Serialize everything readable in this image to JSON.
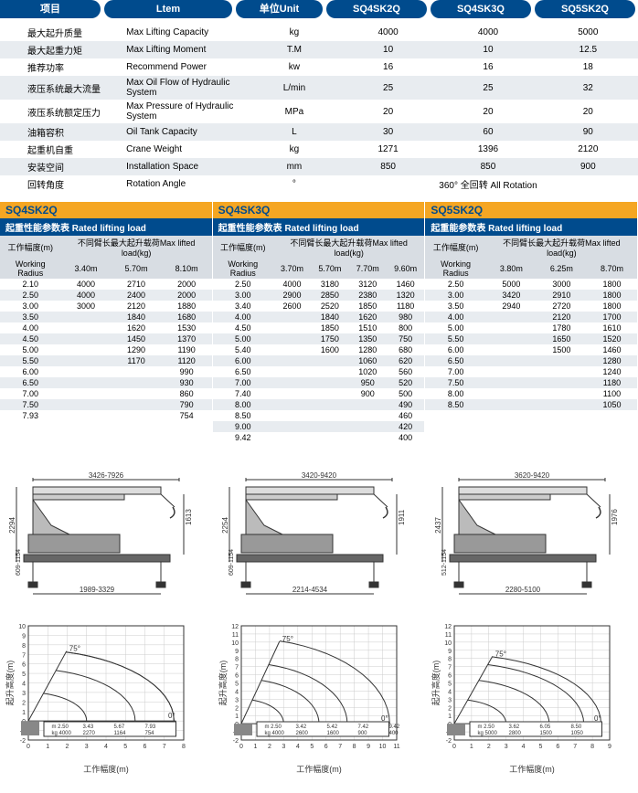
{
  "header": {
    "c1": "项目",
    "c2": "Ltem",
    "c3": "单位Unit",
    "c4": "SQ4SK2Q",
    "c5": "SQ4SK3Q",
    "c6": "SQ5SK2Q"
  },
  "specs": [
    {
      "zh": "最大起升质量",
      "en": "Max Lifting Capacity",
      "unit": "kg",
      "v": [
        "4000",
        "4000",
        "5000"
      ]
    },
    {
      "zh": "最大起重力矩",
      "en": "Max Lifting Moment",
      "unit": "T.M",
      "v": [
        "10",
        "10",
        "12.5"
      ]
    },
    {
      "zh": "推荐功率",
      "en": "Recommend Power",
      "unit": "kw",
      "v": [
        "16",
        "16",
        "18"
      ]
    },
    {
      "zh": "液压系统最大流量",
      "en": "Max Oil Flow of Hydraulic System",
      "unit": "L/min",
      "v": [
        "25",
        "25",
        "32"
      ]
    },
    {
      "zh": "液压系统额定压力",
      "en": "Max Pressure of Hydraulic System",
      "unit": "MPa",
      "v": [
        "20",
        "20",
        "20"
      ]
    },
    {
      "zh": "油箱容积",
      "en": "Oil Tank Capacity",
      "unit": "L",
      "v": [
        "30",
        "60",
        "90"
      ]
    },
    {
      "zh": "起重机自重",
      "en": "Crane Weight",
      "unit": "kg",
      "v": [
        "1271",
        "1396",
        "2120"
      ]
    },
    {
      "zh": "安装空间",
      "en": "Installation Space",
      "unit": "mm",
      "v": [
        "850",
        "850",
        "900"
      ]
    },
    {
      "zh": "回转角度",
      "en": "Rotation Angle",
      "unit": "°",
      "v": [
        "",
        "360° 全回转 All Rotation",
        ""
      ]
    }
  ],
  "models": [
    {
      "name": "SQ4SK2Q",
      "title": "起重性能参数表 Rated lifting load",
      "hdrLeft": "工作幅度(m)",
      "hdrLeftEn": "Working Radius",
      "hdrRight": "不同臂长最大起升载荷Max lifted load(kg)",
      "cols": [
        "3.40m",
        "5.70m",
        "8.10m"
      ],
      "rows": [
        [
          "2.10",
          "4000",
          "2710",
          "2000"
        ],
        [
          "2.50",
          "4000",
          "2400",
          "2000"
        ],
        [
          "3.00",
          "3000",
          "2120",
          "1880"
        ],
        [
          "3.50",
          "",
          "1840",
          "1680"
        ],
        [
          "4.00",
          "",
          "1620",
          "1530"
        ],
        [
          "4.50",
          "",
          "1450",
          "1370"
        ],
        [
          "5.00",
          "",
          "1290",
          "1190"
        ],
        [
          "5.50",
          "",
          "1170",
          "1120"
        ],
        [
          "6.00",
          "",
          "",
          "990"
        ],
        [
          "6.50",
          "",
          "",
          "930"
        ],
        [
          "7.00",
          "",
          "",
          "860"
        ],
        [
          "7.50",
          "",
          "",
          "790"
        ],
        [
          "7.93",
          "",
          "",
          "754"
        ]
      ]
    },
    {
      "name": "SQ4SK3Q",
      "title": "起重性能参数表 Rated lifting load",
      "hdrLeft": "工作幅度(m)",
      "hdrLeftEn": "Working Radius",
      "hdrRight": "不同臂长最大起升载荷Max lifted load(kg)",
      "cols": [
        "3.70m",
        "5.70m",
        "7.70m",
        "9.60m"
      ],
      "rows": [
        [
          "2.50",
          "4000",
          "3180",
          "3120",
          "1460"
        ],
        [
          "3.00",
          "2900",
          "2850",
          "2380",
          "1320"
        ],
        [
          "3.40",
          "2600",
          "2520",
          "1850",
          "1180"
        ],
        [
          "4.00",
          "",
          "1840",
          "1620",
          "980"
        ],
        [
          "4.50",
          "",
          "1850",
          "1510",
          "800"
        ],
        [
          "5.00",
          "",
          "1750",
          "1350",
          "750"
        ],
        [
          "5.40",
          "",
          "1600",
          "1280",
          "680"
        ],
        [
          "6.00",
          "",
          "",
          "1060",
          "620"
        ],
        [
          "6.50",
          "",
          "",
          "1020",
          "560"
        ],
        [
          "7.00",
          "",
          "",
          "950",
          "520"
        ],
        [
          "7.40",
          "",
          "",
          "900",
          "500"
        ],
        [
          "8.00",
          "",
          "",
          "",
          "490"
        ],
        [
          "8.50",
          "",
          "",
          "",
          "460"
        ],
        [
          "9.00",
          "",
          "",
          "",
          "420"
        ],
        [
          "9.42",
          "",
          "",
          "",
          "400"
        ]
      ]
    },
    {
      "name": "SQ5SK2Q",
      "title": "起重能参数表 Rated lifting load",
      "hdrLeft": "工作幅度(m)",
      "hdrLeftEn": "Working Radius",
      "hdrRight": "不同臂长最大起升载荷Max lifted load(kg)",
      "cols": [
        "3.80m",
        "6.25m",
        "8.70m"
      ],
      "rows": [
        [
          "2.50",
          "5000",
          "3000",
          "1800"
        ],
        [
          "3.00",
          "3420",
          "2910",
          "1800"
        ],
        [
          "3.50",
          "2940",
          "2720",
          "1800"
        ],
        [
          "4.00",
          "",
          "2120",
          "1700"
        ],
        [
          "5.00",
          "",
          "1780",
          "1610"
        ],
        [
          "5.50",
          "",
          "1650",
          "1520"
        ],
        [
          "6.00",
          "",
          "1500",
          "1460"
        ],
        [
          "6.50",
          "",
          "",
          "1280"
        ],
        [
          "7.00",
          "",
          "",
          "1240"
        ],
        [
          "7.50",
          "",
          "",
          "1180"
        ],
        [
          "8.00",
          "",
          "",
          "1100"
        ],
        [
          "8.50",
          "",
          "",
          "1050"
        ]
      ]
    }
  ],
  "diagrams": [
    {
      "top": "3426-7926",
      "h": "2294",
      "hook": "1613",
      "base": "1989-3329",
      "bh": "609-1154"
    },
    {
      "top": "3420-9420",
      "h": "2254",
      "hook": "1911",
      "base": "2214-4534",
      "bh": "609-1154"
    },
    {
      "top": "3620-9420",
      "h": "2437",
      "hook": "1976",
      "base": "2280-5100",
      "bh": "512-1154"
    }
  ],
  "charts": [
    {
      "yLabel": "起升高度(m)",
      "xLabel": "工作幅度(m)",
      "xMax": 8,
      "yMax": 10,
      "yMin": -2,
      "legend": [
        "m 2.50",
        "3.43",
        "5.67",
        "7.93"
      ],
      "legend2": [
        "kg 4000",
        "2270",
        "1164",
        "754"
      ]
    },
    {
      "yLabel": "起升高度(m)",
      "xLabel": "工作幅度(m)",
      "xMax": 11,
      "yMax": 12,
      "yMin": -2,
      "legend": [
        "m 2.50",
        "3.42",
        "5.42",
        "7.42",
        "9.42"
      ],
      "legend2": [
        "kg 4000",
        "2600",
        "1600",
        "900",
        "400"
      ]
    },
    {
      "yLabel": "起升高度(m)",
      "xLabel": "工作幅度(m)",
      "xMax": 9,
      "yMax": 12,
      "yMin": -2,
      "legend": [
        "m 2.50",
        "3.62",
        "6.05",
        "8.50"
      ],
      "legend2": [
        "kg 5000",
        "2800",
        "1500",
        "1050"
      ]
    }
  ],
  "style": {
    "blue": "#004b8d",
    "orange": "#f5a623",
    "stripe": "#e8ecf0",
    "grid": "#999"
  }
}
